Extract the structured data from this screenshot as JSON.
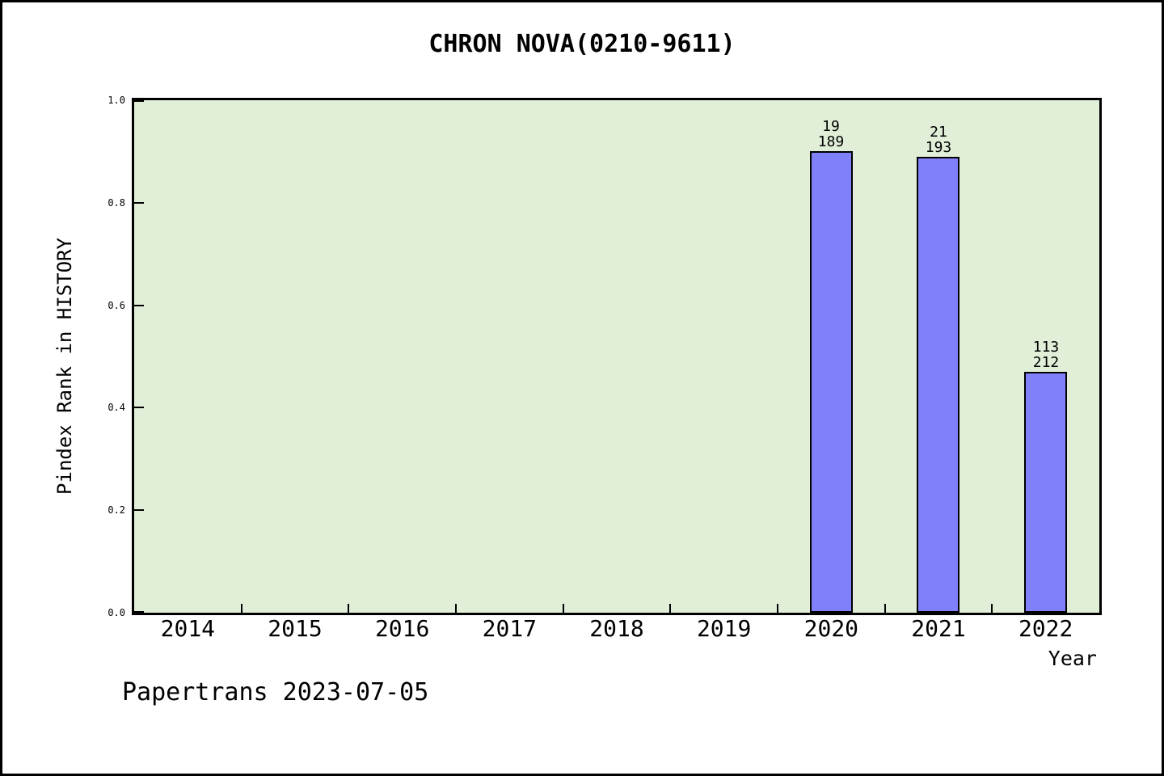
{
  "window": {
    "background_color": "#ffffff",
    "border_color": "#000000"
  },
  "footer": {
    "text": "Papertrans 2023-07-05"
  },
  "chart_data": {
    "type": "bar",
    "title": "CHRON NOVA(0210-9611)",
    "xlabel": "Year",
    "ylabel": "Pindex Rank in HISTORY",
    "categories": [
      "2014",
      "2015",
      "2016",
      "2017",
      "2018",
      "2019",
      "2020",
      "2021",
      "2022"
    ],
    "yticks": [
      "0.0",
      "0.2",
      "0.4",
      "0.6",
      "0.8",
      "1.0"
    ],
    "ylim": [
      0.0,
      1.0
    ],
    "grid": false,
    "legend": null,
    "plot_background_color": "#e1efd8",
    "bar_color": "#8080fa",
    "bar_edge_color": "#000000",
    "bars": [
      {
        "category": "2020",
        "value": 0.9,
        "label_line1": "19",
        "label_line2": "189"
      },
      {
        "category": "2021",
        "value": 0.89,
        "label_line1": "21",
        "label_line2": "193"
      },
      {
        "category": "2022",
        "value": 0.47,
        "label_line1": "113",
        "label_line2": "212"
      }
    ]
  }
}
